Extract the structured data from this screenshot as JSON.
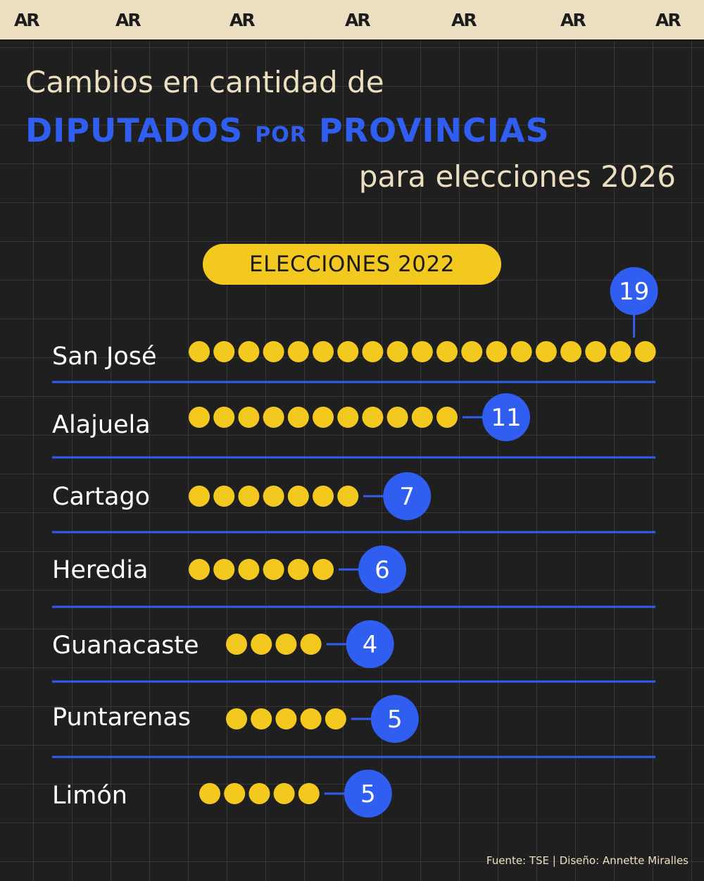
{
  "brand": {
    "logo_text": "AR"
  },
  "title": {
    "line1": "Cambios en cantidad de",
    "line2_part1": "DIPUTADOS",
    "line2_part2": "POR",
    "line2_part3": "PROVINCIAS",
    "line3": "para elecciones 2026"
  },
  "colors": {
    "background": "#201f1f",
    "accent_blue": "#2f5ef0",
    "dot_yellow": "#f4c91f",
    "cream": "#ecdfc1"
  },
  "chart_data": {
    "type": "dot-bar",
    "subtitle": "ELECCIONES 2022",
    "categories": [
      "San José",
      "Alajuela",
      "Cartago",
      "Heredia",
      "Guanacaste",
      "Puntarenas",
      "Limón"
    ],
    "values": [
      19,
      11,
      7,
      6,
      4,
      5,
      5
    ]
  },
  "footer": {
    "source": "Fuente: TSE | Diseño: Annette Miralles"
  }
}
